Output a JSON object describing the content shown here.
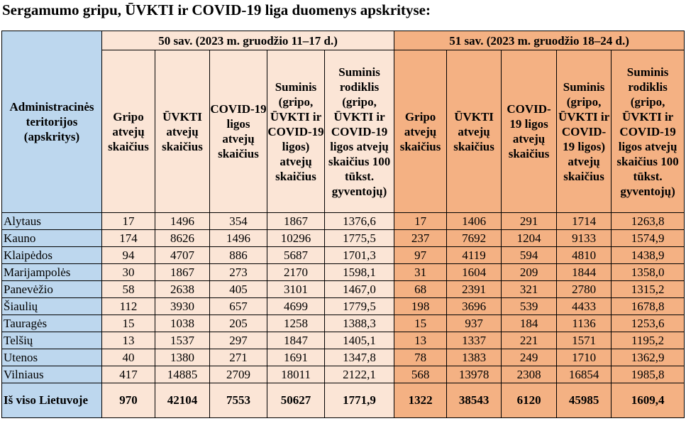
{
  "title": "Sergamumo gripu, ŪVKTI ir COVID-19 liga duomenys apskrityse:",
  "table": {
    "row_header": "Administracinės teritorijos (apskritys)",
    "weeks": [
      {
        "label": "50 sav. (2023 m.  gruodžio 11–17 d.)",
        "columns": [
          "Gripo atvejų skaičius",
          "ŪVKTI atvejų skaičius",
          "COVID-19 ligos atvejų skaičius",
          "Suminis (gripo, ŪVKTI ir COVID-19 ligos) atvejų skaičius",
          "Suminis rodiklis (gripo, ŪVKTI ir COVID-19 ligos atvejų skaičius 100 tūkst. gyventojų)"
        ]
      },
      {
        "label": "51 sav. (2023 m.  gruodžio 18–24 d.)",
        "columns": [
          "Gripo atvejų skaičius",
          "ŪVKTI atvejų skaičius",
          "COVID-19 ligos atvejų skaičius",
          "Suminis (gripo, ŪVKTI ir COVID-19 ligos) atvejų skaičius",
          "Suminis rodiklis (gripo, ŪVKTI ir COVID-19 ligos atvejų skaičius 100 tūkst. gyventojų)"
        ]
      }
    ],
    "rows": [
      {
        "name": "Alytaus",
        "w50": [
          "17",
          "1496",
          "354",
          "1867",
          "1376,6"
        ],
        "w51": [
          "17",
          "1406",
          "291",
          "1714",
          "1263,8"
        ]
      },
      {
        "name": "Kauno",
        "w50": [
          "174",
          "8626",
          "1496",
          "10296",
          "1775,5"
        ],
        "w51": [
          "237",
          "7692",
          "1204",
          "9133",
          "1574,9"
        ]
      },
      {
        "name": "Klaipėdos",
        "w50": [
          "94",
          "4707",
          "886",
          "5687",
          "1701,3"
        ],
        "w51": [
          "97",
          "4119",
          "594",
          "4810",
          "1438,9"
        ]
      },
      {
        "name": "Marijampolės",
        "w50": [
          "30",
          "1867",
          "273",
          "2170",
          "1598,1"
        ],
        "w51": [
          "31",
          "1604",
          "209",
          "1844",
          "1358,0"
        ]
      },
      {
        "name": "Panevėžio",
        "w50": [
          "58",
          "2638",
          "405",
          "3101",
          "1467,0"
        ],
        "w51": [
          "68",
          "2391",
          "321",
          "2780",
          "1315,2"
        ]
      },
      {
        "name": "Šiaulių",
        "w50": [
          "112",
          "3930",
          "657",
          "4699",
          "1779,5"
        ],
        "w51": [
          "198",
          "3696",
          "539",
          "4433",
          "1678,8"
        ]
      },
      {
        "name": "Tauragės",
        "w50": [
          "15",
          "1038",
          "205",
          "1258",
          "1388,3"
        ],
        "w51": [
          "15",
          "937",
          "184",
          "1136",
          "1253,6"
        ]
      },
      {
        "name": "Telšių",
        "w50": [
          "13",
          "1537",
          "297",
          "1847",
          "1405,1"
        ],
        "w51": [
          "13",
          "1337",
          "221",
          "1571",
          "1195,2"
        ]
      },
      {
        "name": "Utenos",
        "w50": [
          "40",
          "1380",
          "271",
          "1691",
          "1347,8"
        ],
        "w51": [
          "78",
          "1383",
          "249",
          "1710",
          "1362,9"
        ]
      },
      {
        "name": "Vilniaus",
        "w50": [
          "417",
          "14885",
          "2709",
          "18011",
          "2122,1"
        ],
        "w51": [
          "568",
          "13978",
          "2308",
          "16854",
          "1985,8"
        ]
      }
    ],
    "total": {
      "name": "Iš viso Lietuvoje",
      "w50": [
        "970",
        "42104",
        "7553",
        "50627",
        "1771,9"
      ],
      "w51": [
        "1322",
        "38543",
        "6120",
        "45985",
        "1609,4"
      ]
    }
  },
  "colors": {
    "header_blue": "#bdd7ee",
    "week50": "#fbe5d6",
    "week51": "#f4b183"
  }
}
